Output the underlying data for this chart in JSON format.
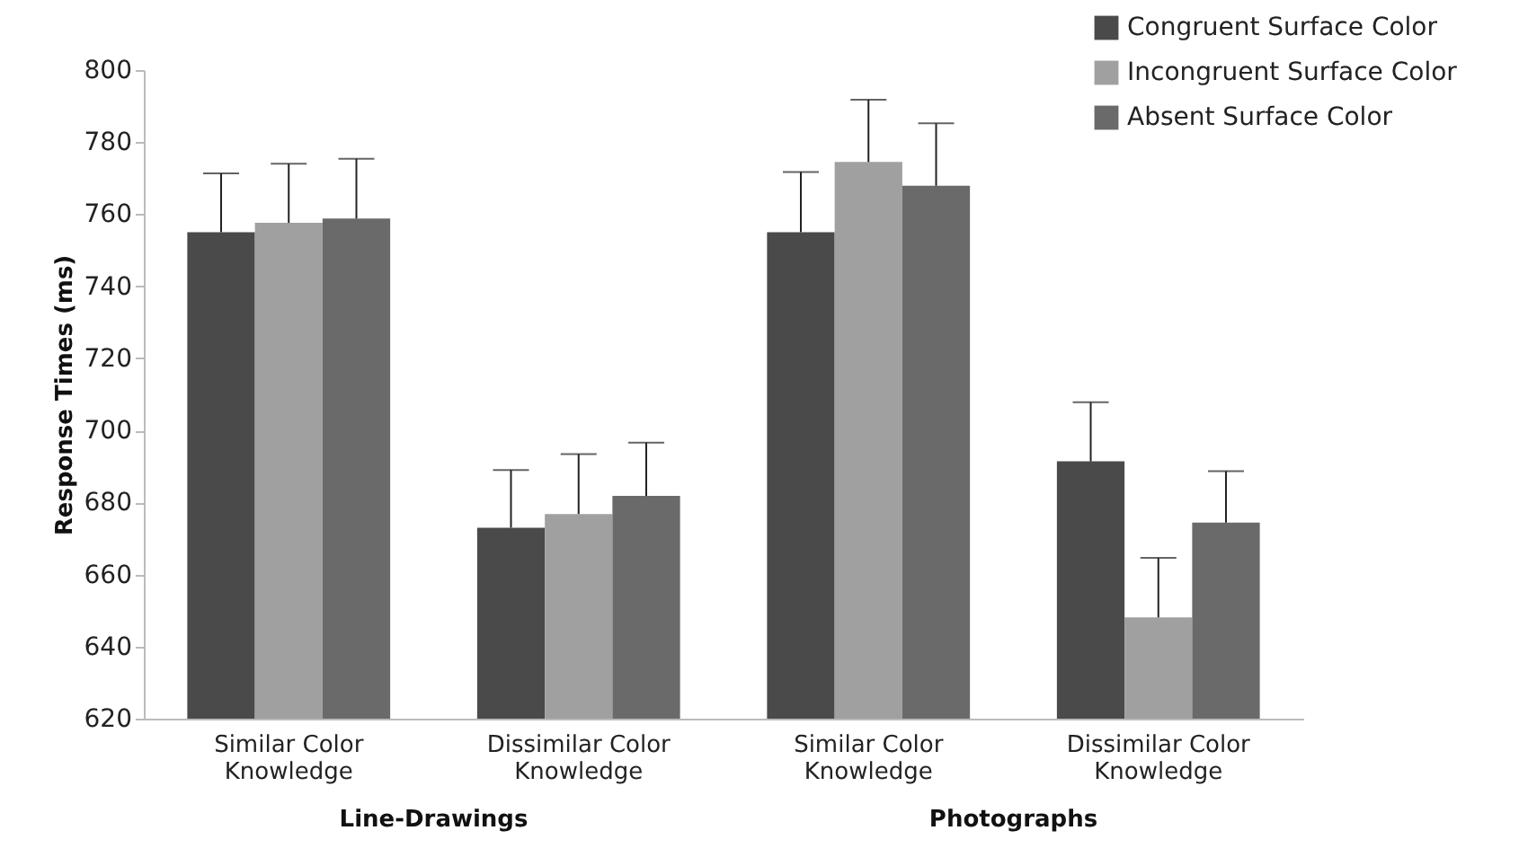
{
  "chart_data": {
    "type": "bar",
    "ylabel": "Response Times (ms)",
    "categories": [
      "Similar Color Knowledge",
      "Dissimilar Color Knowledge",
      "Similar Color Knowledge",
      "Dissimilar Color Knowledge"
    ],
    "series": [
      {
        "name": "Congruent Surface Color",
        "color": "#4a4a4a",
        "values": [
          755,
          673,
          755,
          691.4
        ],
        "errors": [
          [
            755,
            771.3
          ],
          [
            673,
            689
          ],
          [
            755,
            771.7
          ],
          [
            691.4,
            707.8
          ]
        ]
      },
      {
        "name": "Incongruent Surface Color",
        "color": "#a0a0a0",
        "values": [
          757.6,
          676.8,
          774.5,
          648.1
        ],
        "errors": [
          [
            757.6,
            774
          ],
          [
            676.8,
            693.4
          ],
          [
            774.5,
            791.8
          ],
          [
            648.1,
            664.6
          ]
        ]
      },
      {
        "name": "Absent Surface Color",
        "color": "#6a6a6a",
        "values": [
          758.8,
          681.8,
          767.9,
          674.4
        ],
        "errors": [
          [
            758.8,
            775.4
          ],
          [
            681.8,
            696.6
          ],
          [
            767.9,
            785.2
          ],
          [
            674.4,
            688.7
          ]
        ]
      }
    ],
    "ylim": [
      620,
      800
    ],
    "yticks": [
      620,
      640,
      660,
      680,
      700,
      720,
      740,
      760,
      780,
      800
    ],
    "grid": false,
    "legend": "top right",
    "annotations": [
      "Line-Drawings",
      "Photographs"
    ]
  }
}
